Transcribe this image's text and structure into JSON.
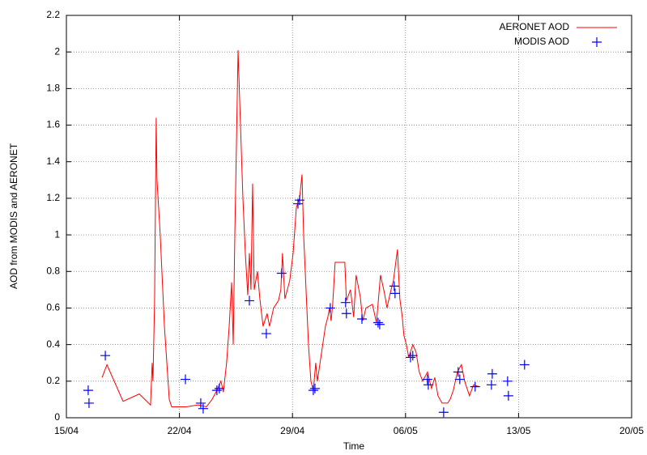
{
  "chart_data": {
    "type": "line",
    "x_label": "Time",
    "y_label": "AOD from MODIS and AERONET",
    "xlim": [
      0,
      35
    ],
    "xticks": [
      {
        "value": 0,
        "label": "15/04"
      },
      {
        "value": 7,
        "label": "22/04"
      },
      {
        "value": 14,
        "label": "29/04"
      },
      {
        "value": 21,
        "label": "06/05"
      },
      {
        "value": 28,
        "label": "13/05"
      },
      {
        "value": 35,
        "label": "20/05"
      }
    ],
    "ylim": [
      0,
      2.2
    ],
    "yticks": [
      0,
      0.2,
      0.4,
      0.6,
      0.8,
      1,
      1.2,
      1.4,
      1.6,
      1.8,
      2,
      2.2
    ],
    "grid": true,
    "legend": "top-right",
    "series": [
      {
        "name": "AERONET AOD",
        "color": "#ff0000",
        "style": "line",
        "x": [
          2.21,
          2.51,
          3.51,
          4.51,
          5.21,
          5.31,
          5.36,
          5.46,
          5.56,
          5.61,
          5.81,
          6.07,
          6.37,
          6.52,
          7.42,
          8.17,
          8.67,
          9.02,
          9.32,
          9.57,
          9.72,
          9.92,
          10.08,
          10.23,
          10.33,
          10.43,
          10.53,
          10.63,
          10.78,
          10.93,
          11.08,
          11.23,
          11.33,
          11.43,
          11.53,
          11.63,
          11.83,
          11.98,
          12.18,
          12.43,
          12.58,
          12.83,
          13.13,
          13.28,
          13.38,
          13.53,
          13.68,
          13.83,
          14.04,
          14.24,
          14.44,
          14.59,
          14.69,
          14.84,
          14.99,
          15.14,
          15.29,
          15.44,
          15.54,
          15.79,
          16.04,
          16.19,
          16.29,
          16.39,
          16.49,
          16.64,
          17.24,
          17.34,
          17.59,
          17.79,
          17.94,
          18.2,
          18.35,
          18.55,
          18.95,
          19.2,
          19.45,
          19.7,
          19.85,
          20.05,
          20.25,
          20.5,
          20.65,
          20.8,
          20.9,
          21.05,
          21.2,
          21.45,
          21.65,
          21.85,
          22.06,
          22.36,
          22.61,
          22.81,
          23.01,
          23.26,
          23.61,
          23.76,
          23.96,
          24.21,
          24.46,
          24.66,
          24.96,
          25.21,
          25.56
        ],
        "values": [
          0.22,
          0.29,
          0.09,
          0.13,
          0.07,
          0.3,
          0.2,
          0.63,
          1.64,
          1.3,
          1.0,
          0.5,
          0.1,
          0.06,
          0.06,
          0.07,
          0.06,
          0.1,
          0.15,
          0.2,
          0.14,
          0.3,
          0.5,
          0.74,
          0.4,
          1.0,
          1.5,
          2.01,
          1.6,
          1.2,
          0.9,
          0.67,
          0.9,
          0.7,
          1.28,
          0.7,
          0.8,
          0.65,
          0.5,
          0.57,
          0.5,
          0.6,
          0.64,
          0.7,
          0.9,
          0.65,
          0.7,
          0.75,
          0.9,
          1.15,
          1.2,
          1.33,
          1.0,
          0.7,
          0.4,
          0.2,
          0.15,
          0.3,
          0.2,
          0.35,
          0.5,
          0.55,
          0.6,
          0.53,
          0.62,
          0.85,
          0.85,
          0.64,
          0.7,
          0.55,
          0.78,
          0.66,
          0.53,
          0.6,
          0.62,
          0.52,
          0.78,
          0.68,
          0.6,
          0.68,
          0.75,
          0.92,
          0.65,
          0.55,
          0.45,
          0.4,
          0.33,
          0.4,
          0.36,
          0.25,
          0.2,
          0.25,
          0.16,
          0.22,
          0.12,
          0.08,
          0.08,
          0.1,
          0.15,
          0.25,
          0.29,
          0.2,
          0.12,
          0.18,
          0.17
        ]
      },
      {
        "name": "MODIS AOD",
        "color": "#0000ff",
        "style": "points",
        "x": [
          1.35,
          1.4,
          2.41,
          7.37,
          8.32,
          8.47,
          9.32,
          9.47,
          11.33,
          12.38,
          13.33,
          14.34,
          14.44,
          15.29,
          15.39,
          16.34,
          17.29,
          17.34,
          18.3,
          19.3,
          19.4,
          20.3,
          20.35,
          21.31,
          21.45,
          22.36,
          22.41,
          23.36,
          24.26,
          24.36,
          25.31,
          26.32,
          26.37,
          27.32,
          27.37,
          28.37
        ],
        "values": [
          0.15,
          0.08,
          0.34,
          0.21,
          0.08,
          0.05,
          0.15,
          0.16,
          0.64,
          0.46,
          0.79,
          1.17,
          1.19,
          0.15,
          0.16,
          0.6,
          0.63,
          0.57,
          0.54,
          0.52,
          0.51,
          0.72,
          0.68,
          0.33,
          0.34,
          0.21,
          0.18,
          0.03,
          0.25,
          0.21,
          0.17,
          0.18,
          0.24,
          0.2,
          0.12,
          0.29
        ]
      }
    ]
  }
}
